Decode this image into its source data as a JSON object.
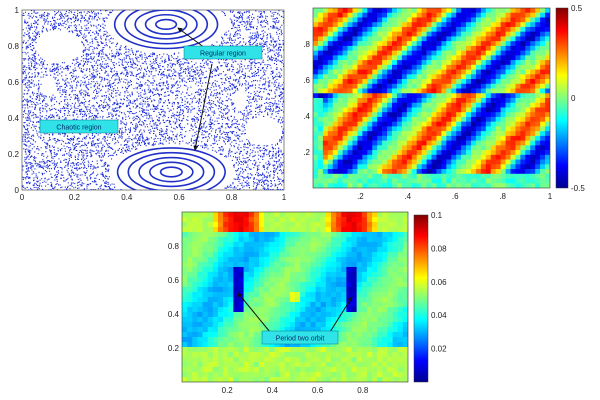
{
  "colors": {
    "scatter": "#1f2fd9",
    "orbit": "#2030c8",
    "annotation_box": "#2fe3e8",
    "annotation_text": "#0a2a6a"
  },
  "chart_data": [
    {
      "type": "scatter",
      "panel": "top-left",
      "xlim": [
        0,
        1
      ],
      "ylim": [
        0,
        1
      ],
      "xticks": [
        "0",
        "0.2",
        "0.4",
        "0.6",
        "0.8",
        "1"
      ],
      "yticks": [
        "0",
        "0.2",
        "0.4",
        "0.6",
        "0.8",
        "1"
      ],
      "regular_islands": [
        {
          "center_x": 0.55,
          "center_y": 0.92,
          "width": 0.44,
          "height": 0.3
        },
        {
          "center_x": 0.57,
          "center_y": 0.1,
          "width": 0.46,
          "height": 0.3
        }
      ],
      "annotations": [
        {
          "text": "Regular region",
          "points_to": [
            [
              0.55,
              0.95
            ],
            [
              0.62,
              0.25
            ]
          ]
        },
        {
          "text": "Chaotic region"
        }
      ]
    },
    {
      "type": "heatmap",
      "panel": "top-right",
      "xlim": [
        0,
        1
      ],
      "ylim": [
        0,
        1
      ],
      "xticks": [
        ".2",
        ".4",
        ".6",
        ".8",
        "1"
      ],
      "yticks": [
        ".2",
        ".4",
        ".6",
        ".8"
      ],
      "colorbar": {
        "min": -0.5,
        "max": 0.5,
        "ticks": [
          "0.5",
          "0",
          "-0.5"
        ]
      }
    },
    {
      "type": "heatmap",
      "panel": "bottom",
      "xlim": [
        0,
        1
      ],
      "ylim": [
        0,
        1
      ],
      "xticks": [
        "0.2",
        "0.4",
        "0.6",
        "0.8"
      ],
      "yticks": [
        "0.2",
        "0.4",
        "0.6",
        "0.8"
      ],
      "colorbar": {
        "min": 0,
        "max": 0.1,
        "ticks": [
          "0.1",
          "0.08",
          "0.06",
          "0.04",
          "0.02"
        ]
      },
      "annotations": [
        {
          "text": "Period two orbit",
          "points_to": [
            [
              0.25,
              0.55
            ],
            [
              0.75,
              0.55
            ]
          ]
        }
      ]
    }
  ]
}
